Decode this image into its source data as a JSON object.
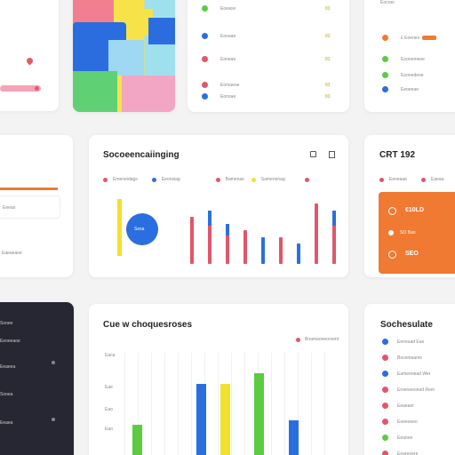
{
  "stats_card": {
    "title": "CRT 192",
    "row1": "€10LD",
    "row2": "SEO"
  },
  "main_chart": {
    "title": "Socoeencaiinging",
    "legend": [
      "Emeneidags",
      "Eeonsiag",
      "Bamenas",
      "Samenenag",
      ""
    ],
    "donut_label": "Sesa"
  },
  "bottom_chart": {
    "title": "Cue w choquesroses",
    "legend": "Bnamaoneonomt",
    "axis": [
      "Eaca",
      "Eae",
      "Eao",
      "Eao"
    ]
  },
  "bottom_right_list": {
    "title": "Sochesulate",
    "items": [
      "Eenouad Eae",
      "Bocemaame",
      "Eameonead Wer",
      "Eroeneeoned Rem",
      "Eeaeanr",
      "Eoeeoeeo",
      "Eeanoe",
      "Eeareoere"
    ]
  },
  "top_middle_list": {
    "items": [
      "Eoeaoe",
      "Eoeaae",
      "Eoneae",
      "Eomaeoe",
      "Eonoae"
    ],
    "values": [
      "83",
      "83",
      "83",
      "83",
      "83"
    ]
  },
  "top_right_list": {
    "title": "Eocrao",
    "items": [
      "£ Eoeneo",
      "Eoonemeoe",
      "Eoonedeoe",
      "Eeoeeae"
    ]
  },
  "left_mid": {
    "label1": "Eeeao",
    "label2": "Eaeaeaoe"
  },
  "left_dark": {
    "items": [
      "Sooee",
      "Eeoeeaoe",
      "Eeaeea",
      "Sooea",
      "Eeaea"
    ]
  },
  "chart_data": {
    "type": "bar",
    "categories": [
      "",
      "",
      "",
      "",
      "",
      "",
      "",
      "",
      ""
    ],
    "series": [
      {
        "values": [
          7,
          8,
          6,
          5,
          4,
          4,
          3,
          9,
          8
        ]
      }
    ]
  },
  "colors": {
    "orange": "#f07a32",
    "blue": "#2a6fe0",
    "red": "#e0566a",
    "yellow": "#f2e12c",
    "green": "#5ccb41",
    "dark": "#272733"
  }
}
